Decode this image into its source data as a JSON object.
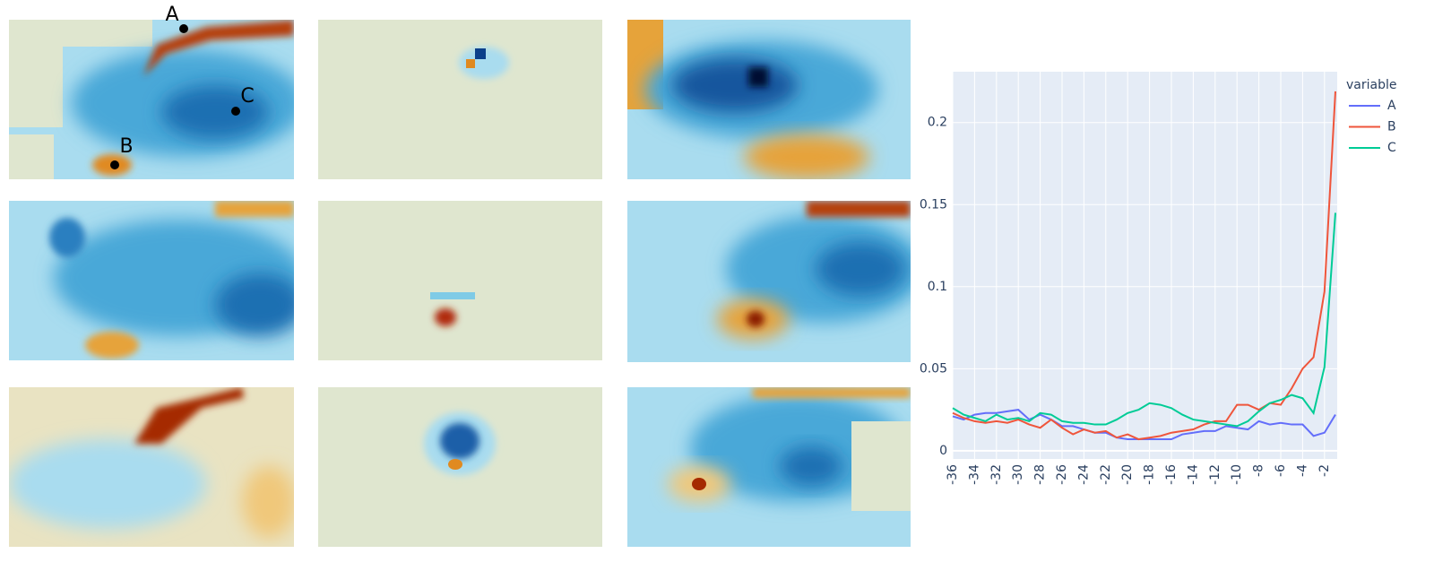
{
  "panel_markers": [
    "A",
    "B",
    "C"
  ],
  "chart_data": {
    "type": "line",
    "legend_title": "variable",
    "legend": "right",
    "grid": true,
    "x": [
      -36,
      -35,
      -34,
      -33,
      -32,
      -31,
      -30,
      -29,
      -28,
      -27,
      -26,
      -25,
      -24,
      -23,
      -22,
      -21,
      -20,
      -19,
      -18,
      -17,
      -16,
      -15,
      -14,
      -13,
      -12,
      -11,
      -10,
      -9,
      -8,
      -7,
      -6,
      -5,
      -4,
      -3,
      -2,
      -1
    ],
    "xlim": [
      -36,
      -1
    ],
    "xticks": [
      -36,
      -34,
      -32,
      -30,
      -28,
      -26,
      -24,
      -22,
      -20,
      -18,
      -16,
      -14,
      -12,
      -10,
      -8,
      -6,
      -4,
      -2
    ],
    "ylim": [
      -0.005,
      0.231
    ],
    "yticks": [
      0,
      0.05,
      0.1,
      0.15,
      0.2
    ],
    "series": [
      {
        "name": "A",
        "color": "#636efa",
        "values": [
          0.021,
          0.019,
          0.022,
          0.023,
          0.023,
          0.024,
          0.025,
          0.019,
          0.022,
          0.019,
          0.015,
          0.015,
          0.013,
          0.011,
          0.011,
          0.008,
          0.007,
          0.007,
          0.007,
          0.007,
          0.007,
          0.01,
          0.011,
          0.012,
          0.012,
          0.015,
          0.014,
          0.013,
          0.018,
          0.016,
          0.017,
          0.016,
          0.016,
          0.009,
          0.011,
          0.022
        ]
      },
      {
        "name": "B",
        "color": "#ef553b",
        "values": [
          0.023,
          0.02,
          0.018,
          0.017,
          0.018,
          0.017,
          0.019,
          0.016,
          0.014,
          0.019,
          0.014,
          0.01,
          0.013,
          0.011,
          0.012,
          0.008,
          0.01,
          0.007,
          0.008,
          0.009,
          0.011,
          0.012,
          0.013,
          0.016,
          0.018,
          0.018,
          0.028,
          0.028,
          0.025,
          0.029,
          0.028,
          0.038,
          0.05,
          0.057,
          0.097,
          0.219
        ]
      },
      {
        "name": "C",
        "color": "#00cc96",
        "values": [
          0.026,
          0.022,
          0.02,
          0.018,
          0.022,
          0.019,
          0.02,
          0.018,
          0.023,
          0.022,
          0.018,
          0.017,
          0.017,
          0.016,
          0.016,
          0.019,
          0.023,
          0.025,
          0.029,
          0.028,
          0.026,
          0.022,
          0.019,
          0.018,
          0.017,
          0.016,
          0.015,
          0.018,
          0.024,
          0.029,
          0.031,
          0.034,
          0.032,
          0.023,
          0.051,
          0.145
        ]
      }
    ]
  }
}
